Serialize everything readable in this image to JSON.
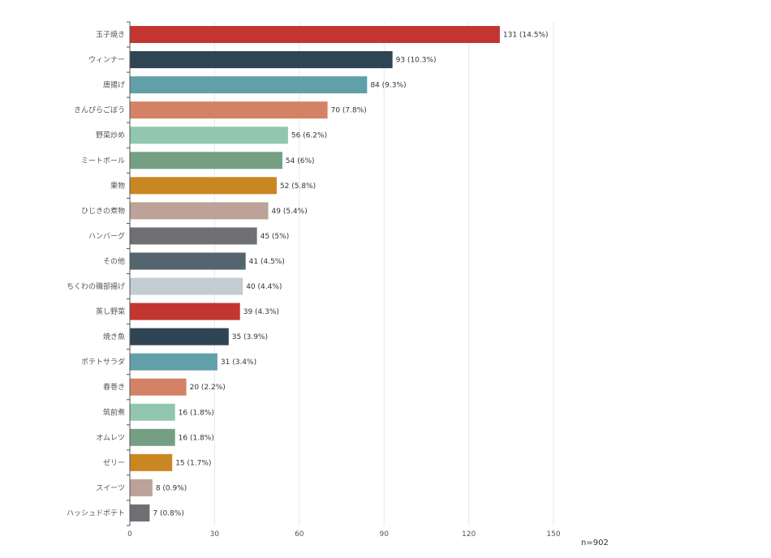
{
  "chart_data": {
    "type": "bar",
    "orientation": "horizontal",
    "title": "",
    "xlabel": "",
    "ylabel": "",
    "xlim": [
      0,
      150
    ],
    "xticks": [
      0,
      30,
      60,
      90,
      120,
      150
    ],
    "grid": true,
    "categories": [
      "玉子焼き",
      "ウィンナー",
      "唐揚げ",
      "きんぴらごぼう",
      "野菜炒め",
      "ミートボール",
      "果物",
      "ひじきの煮物",
      "ハンバーグ",
      "その他",
      "ちくわの磯部揚げ",
      "蒸し野菜",
      "焼き魚",
      "ポテトサラダ",
      "春巻き",
      "筑前煮",
      "オムレツ",
      "ゼリー",
      "スイーツ",
      "ハッシュドポテト"
    ],
    "values": [
      131,
      93,
      84,
      70,
      56,
      54,
      52,
      49,
      45,
      41,
      40,
      39,
      35,
      31,
      20,
      16,
      16,
      15,
      8,
      7
    ],
    "data_labels": [
      "131 (14.5%)",
      "93 (10.3%)",
      "84 (9.3%)",
      "70 (7.8%)",
      "56 (6.2%)",
      "54 (6%)",
      "52 (5.8%)",
      "49 (5.4%)",
      "45 (5%)",
      "41 (4.5%)",
      "40 (4.4%)",
      "39 (4.3%)",
      "35 (3.9%)",
      "31 (3.4%)",
      "20 (2.2%)",
      "16 (1.8%)",
      "16 (1.8%)",
      "15 (1.7%)",
      "8 (0.9%)",
      "7 (0.8%)"
    ],
    "colors": [
      "#c23531",
      "#2f4554",
      "#61a0a8",
      "#d48265",
      "#91c7ae",
      "#749f83",
      "#ca8622",
      "#bda29a",
      "#6e7074",
      "#546570",
      "#c4ccd3",
      "#c23531",
      "#2f4554",
      "#61a0a8",
      "#d48265",
      "#91c7ae",
      "#749f83",
      "#ca8622",
      "#bda29a",
      "#6e7074"
    ],
    "note": "n=902"
  }
}
